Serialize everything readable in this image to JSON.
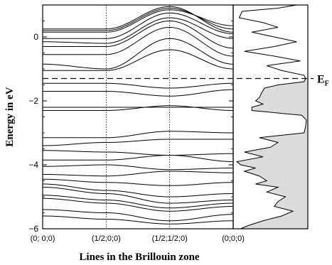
{
  "chart_data": [
    {
      "type": "line",
      "panel": "band-structure",
      "xlabel": "Lines in the Brillouin zone",
      "ylabel": "Energy in eV",
      "ylim": [
        -6,
        1.0
      ],
      "yticks": [
        0,
        -2,
        -4,
        -6
      ],
      "ytick_labels": [
        "0",
        "−2",
        "−4",
        "−6"
      ],
      "x": [
        0,
        1,
        2,
        3
      ],
      "x_tick_labels": [
        "(0; 0;0)",
        "(1/2;0;0)",
        "(1/2;1/2;0)",
        "(0;0;0)"
      ],
      "fermi_level": {
        "value": -1.3,
        "label_main": "E",
        "label_sub": "F"
      },
      "grid": false,
      "series": [
        {
          "values": [
            0.25,
            0.25,
            0.95,
            0.15
          ]
        },
        {
          "values": [
            0.2,
            0.2,
            0.9,
            0.25
          ]
        },
        {
          "values": [
            0.15,
            0.15,
            0.85,
            0.35
          ]
        },
        {
          "values": [
            -0.05,
            -0.05,
            0.75,
            0.1
          ]
        },
        {
          "values": [
            -0.15,
            -0.2,
            0.6,
            -0.05
          ]
        },
        {
          "values": [
            -0.3,
            -0.3,
            0.5,
            -0.35
          ]
        },
        {
          "values": [
            -0.55,
            -0.55,
            0.3,
            -0.6
          ]
        },
        {
          "values": [
            -0.85,
            -1.0,
            -0.05,
            -0.85
          ]
        },
        {
          "values": [
            -1.05,
            -1.05,
            -0.4,
            -1.0
          ]
        },
        {
          "values": [
            -1.45,
            -1.45,
            -1.6,
            -1.45
          ]
        },
        {
          "values": [
            -1.7,
            -1.7,
            -1.85,
            -1.65
          ]
        },
        {
          "values": [
            -2.2,
            -2.2,
            -2.2,
            -2.2
          ]
        },
        {
          "values": [
            -2.3,
            -2.3,
            -2.15,
            -2.3
          ]
        },
        {
          "values": [
            -3.15,
            -3.15,
            -2.95,
            -3.0
          ]
        },
        {
          "values": [
            -3.4,
            -3.3,
            -3.2,
            -3.2
          ]
        },
        {
          "values": [
            -3.55,
            -3.6,
            -3.7,
            -3.65
          ]
        },
        {
          "values": [
            -3.85,
            -3.85,
            -3.7,
            -3.9
          ]
        },
        {
          "values": [
            -4.05,
            -4.0,
            -4.15,
            -4.1
          ]
        },
        {
          "values": [
            -4.3,
            -4.35,
            -4.2,
            -4.25
          ]
        },
        {
          "values": [
            -4.45,
            -4.55,
            -4.65,
            -4.55
          ]
        },
        {
          "values": [
            -4.6,
            -4.8,
            -5.0,
            -4.9
          ]
        },
        {
          "values": [
            -4.7,
            -4.9,
            -5.2,
            -5.1
          ]
        },
        {
          "values": [
            -4.95,
            -5.1,
            -5.35,
            -5.2
          ]
        },
        {
          "values": [
            -5.05,
            -5.2,
            -5.45,
            -5.3
          ]
        },
        {
          "values": [
            -5.4,
            -5.5,
            -5.75,
            -5.55
          ]
        },
        {
          "values": [
            -5.6,
            -5.7,
            -5.85,
            -5.75
          ]
        }
      ]
    },
    {
      "type": "area",
      "panel": "density-of-states",
      "ylim": [
        -6,
        1.0
      ],
      "xlim": [
        0,
        1
      ],
      "grid": false,
      "filled_below": -1.3,
      "fill_color": "#dcdcdc",
      "energy": [
        1.0,
        0.9,
        0.8,
        0.6,
        0.45,
        0.3,
        0.15,
        0.0,
        -0.15,
        -0.3,
        -0.45,
        -0.6,
        -0.75,
        -0.9,
        -1.05,
        -1.2,
        -1.3,
        -1.4,
        -1.5,
        -1.6,
        -1.75,
        -1.9,
        -2.0,
        -2.1,
        -2.2,
        -2.3,
        -2.45,
        -2.6,
        -2.8,
        -3.0,
        -3.15,
        -3.3,
        -3.45,
        -3.6,
        -3.75,
        -3.9,
        -4.0,
        -4.1,
        -4.2,
        -4.35,
        -4.5,
        -4.6,
        -4.7,
        -4.85,
        -5.0,
        -5.15,
        -5.3,
        -5.45,
        -5.6,
        -5.75,
        -5.9,
        -6.0
      ],
      "dos": [
        0.85,
        0.6,
        0.12,
        0.08,
        0.4,
        0.6,
        0.25,
        0.55,
        0.85,
        0.55,
        0.15,
        0.55,
        0.9,
        0.45,
        0.65,
        0.95,
        0.97,
        0.95,
        0.6,
        0.42,
        0.38,
        0.35,
        0.3,
        0.4,
        0.25,
        0.25,
        0.92,
        0.98,
        0.97,
        0.95,
        0.35,
        0.6,
        0.5,
        0.15,
        0.4,
        0.05,
        0.1,
        0.3,
        0.15,
        0.35,
        0.45,
        0.3,
        0.6,
        0.45,
        0.7,
        0.6,
        0.55,
        0.8,
        0.65,
        0.4,
        0.2,
        0.1
      ]
    }
  ]
}
